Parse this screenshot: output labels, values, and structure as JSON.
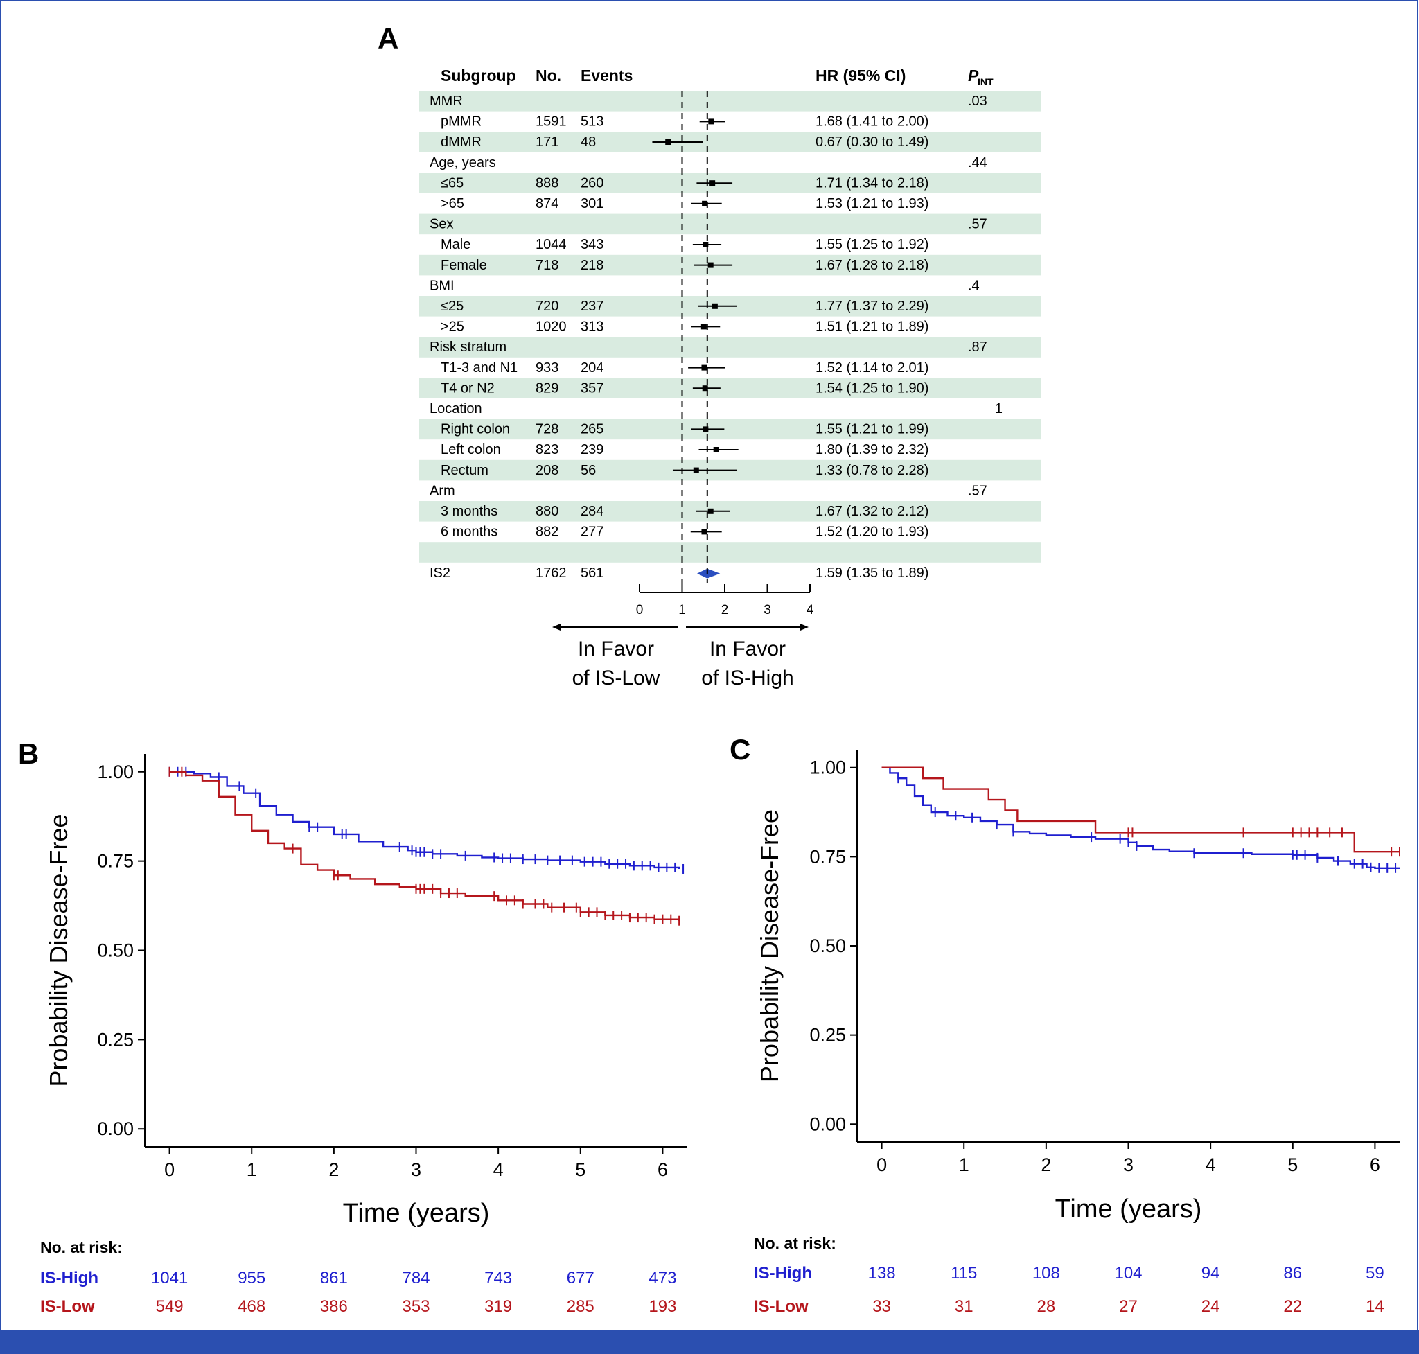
{
  "colors": {
    "high": "#1f1fcf",
    "low": "#b5161c",
    "band": "#d9ebe0",
    "diamond": "#2b4fc0",
    "footer": "#2b4fb0"
  },
  "forest": {
    "panel_label": "A",
    "headers": {
      "subgroup": "Subgroup",
      "no": "No.",
      "events": "Events",
      "hr": "HR (95% CI)",
      "pint": "P",
      "pint_sub": "INT"
    },
    "rows": [
      {
        "label": "MMR",
        "indent": false,
        "pint": ".03",
        "shaded": true
      },
      {
        "label": "pMMR",
        "indent": true,
        "no": "1591",
        "events": "513",
        "hr": 1.68,
        "lo": 1.41,
        "hi": 2.0,
        "ci": "1.68 (1.41 to 2.00)",
        "shaded": false
      },
      {
        "label": "dMMR",
        "indent": true,
        "no": "171",
        "events": "48",
        "hr": 0.67,
        "lo": 0.3,
        "hi": 1.49,
        "ci": "0.67 (0.30 to 1.49)",
        "shaded": true
      },
      {
        "label": "Age, years",
        "indent": false,
        "pint": ".44",
        "shaded": false
      },
      {
        "label": "≤65",
        "indent": true,
        "no": "888",
        "events": "260",
        "hr": 1.71,
        "lo": 1.34,
        "hi": 2.18,
        "ci": "1.71 (1.34 to 2.18)",
        "shaded": true
      },
      {
        "label": ">65",
        "indent": true,
        "no": "874",
        "events": "301",
        "hr": 1.53,
        "lo": 1.21,
        "hi": 1.93,
        "ci": "1.53 (1.21 to 1.93)",
        "shaded": false
      },
      {
        "label": "Sex",
        "indent": false,
        "pint": ".57",
        "shaded": true
      },
      {
        "label": "Male",
        "indent": true,
        "no": "1044",
        "events": "343",
        "hr": 1.55,
        "lo": 1.25,
        "hi": 1.92,
        "ci": "1.55 (1.25 to 1.92)",
        "shaded": false
      },
      {
        "label": "Female",
        "indent": true,
        "no": "718",
        "events": "218",
        "hr": 1.67,
        "lo": 1.28,
        "hi": 2.18,
        "ci": "1.67 (1.28 to 2.18)",
        "shaded": true
      },
      {
        "label": "BMI",
        "indent": false,
        "pint": ".4",
        "shaded": false
      },
      {
        "label": "≤25",
        "indent": true,
        "no": "720",
        "events": "237",
        "hr": 1.77,
        "lo": 1.37,
        "hi": 2.29,
        "ci": "1.77 (1.37 to 2.29)",
        "shaded": true
      },
      {
        "label": ">25",
        "indent": true,
        "no": "1020",
        "events": "313",
        "hr": 1.51,
        "lo": 1.21,
        "hi": 1.89,
        "ci": "1.51 (1.21 to 1.89)",
        "shaded": false
      },
      {
        "label": "Risk stratum",
        "indent": false,
        "pint": ".87",
        "shaded": true
      },
      {
        "label": "T1-3 and N1",
        "indent": true,
        "no": "933",
        "events": "204",
        "hr": 1.52,
        "lo": 1.14,
        "hi": 2.01,
        "ci": "1.52 (1.14 to 2.01)",
        "shaded": false
      },
      {
        "label": "T4 or N2",
        "indent": true,
        "no": "829",
        "events": "357",
        "hr": 1.54,
        "lo": 1.25,
        "hi": 1.9,
        "ci": "1.54 (1.25 to 1.90)",
        "shaded": true
      },
      {
        "label": "Location",
        "indent": false,
        "pint": "1",
        "shaded": false
      },
      {
        "label": "Right colon",
        "indent": true,
        "no": "728",
        "events": "265",
        "hr": 1.55,
        "lo": 1.21,
        "hi": 1.99,
        "ci": "1.55 (1.21 to 1.99)",
        "shaded": true
      },
      {
        "label": "Left colon",
        "indent": true,
        "no": "823",
        "events": "239",
        "hr": 1.8,
        "lo": 1.39,
        "hi": 2.32,
        "ci": "1.80 (1.39 to 2.32)",
        "shaded": false
      },
      {
        "label": "Rectum",
        "indent": true,
        "no": "208",
        "events": "56",
        "hr": 1.33,
        "lo": 0.78,
        "hi": 2.28,
        "ci": "1.33 (0.78 to 2.28)",
        "shaded": true
      },
      {
        "label": "Arm",
        "indent": false,
        "pint": ".57",
        "shaded": false
      },
      {
        "label": "3 months",
        "indent": true,
        "no": "880",
        "events": "284",
        "hr": 1.67,
        "lo": 1.32,
        "hi": 2.12,
        "ci": "1.67 (1.32 to 2.12)",
        "shaded": true
      },
      {
        "label": "6 months",
        "indent": true,
        "no": "882",
        "events": "277",
        "hr": 1.52,
        "lo": 1.2,
        "hi": 1.93,
        "ci": "1.52 (1.20 to 1.93)",
        "shaded": false
      },
      {
        "label": "",
        "indent": false,
        "shaded": true
      }
    ],
    "overall": {
      "label": "IS2",
      "no": "1762",
      "events": "561",
      "hr": 1.59,
      "lo": 1.35,
      "hi": 1.89,
      "ci": "1.59 (1.35 to 1.89)"
    },
    "axis_ticks": [
      0,
      1,
      2,
      3,
      4
    ],
    "left_label_1": "In Favor",
    "left_label_2": "of IS-Low",
    "right_label_1": "In Favor",
    "right_label_2": "of IS-High"
  },
  "chart_data": [
    {
      "type": "line",
      "panel": "B",
      "xlabel": "Time (years)",
      "ylabel": "Probability Disease-Free",
      "xlim": [
        -0.3,
        6.3
      ],
      "ylim": [
        -0.05,
        1.05
      ],
      "xticks": [
        0,
        1,
        2,
        3,
        4,
        5,
        6
      ],
      "yticks": [
        "0.00",
        "0.25",
        "0.50",
        "0.75",
        "1.00"
      ],
      "series": [
        {
          "name": "IS-High",
          "color": "high",
          "x": [
            0,
            0.3,
            0.5,
            0.7,
            0.9,
            1.1,
            1.3,
            1.5,
            1.7,
            2.0,
            2.3,
            2.6,
            2.9,
            3.0,
            3.2,
            3.5,
            3.8,
            4.0,
            4.3,
            4.6,
            5.0,
            5.3,
            5.6,
            5.9,
            6.2
          ],
          "y": [
            1.0,
            0.995,
            0.985,
            0.96,
            0.94,
            0.905,
            0.88,
            0.86,
            0.845,
            0.825,
            0.805,
            0.79,
            0.78,
            0.775,
            0.77,
            0.765,
            0.76,
            0.758,
            0.755,
            0.752,
            0.748,
            0.742,
            0.737,
            0.732,
            0.728
          ],
          "censor": [
            0,
            0.1,
            0.2,
            0.6,
            0.85,
            1.05,
            1.7,
            1.8,
            2.1,
            2.15,
            2.8,
            2.95,
            3.0,
            3.05,
            3.1,
            3.2,
            3.3,
            3.6,
            3.95,
            4.05,
            4.15,
            4.3,
            4.45,
            4.6,
            4.75,
            4.9,
            5.05,
            5.15,
            5.25,
            5.35,
            5.45,
            5.55,
            5.65,
            5.75,
            5.85,
            5.95,
            6.05,
            6.15,
            6.25
          ]
        },
        {
          "name": "IS-Low",
          "color": "low",
          "x": [
            0,
            0.2,
            0.4,
            0.6,
            0.8,
            1.0,
            1.2,
            1.4,
            1.6,
            1.8,
            2.0,
            2.2,
            2.5,
            2.8,
            3.0,
            3.3,
            3.6,
            4.0,
            4.3,
            4.6,
            5.0,
            5.3,
            5.6,
            5.9,
            6.2
          ],
          "y": [
            1.0,
            0.99,
            0.975,
            0.93,
            0.88,
            0.835,
            0.8,
            0.785,
            0.74,
            0.725,
            0.71,
            0.7,
            0.685,
            0.678,
            0.672,
            0.66,
            0.652,
            0.64,
            0.63,
            0.62,
            0.607,
            0.598,
            0.592,
            0.587,
            0.583
          ],
          "censor": [
            0,
            0.15,
            1.5,
            2.0,
            2.05,
            3.0,
            3.05,
            3.1,
            3.2,
            3.3,
            3.4,
            3.5,
            3.95,
            4.1,
            4.2,
            4.3,
            4.45,
            4.55,
            4.65,
            4.8,
            4.95,
            5.0,
            5.1,
            5.2,
            5.3,
            5.4,
            5.5,
            5.6,
            5.7,
            5.8,
            5.9,
            6.0,
            6.1,
            6.2
          ]
        }
      ],
      "risk_table": {
        "title": "No. at risk:",
        "rows": [
          {
            "name": "IS-High",
            "color": "high",
            "values": [
              "1041",
              "955",
              "861",
              "784",
              "743",
              "677",
              "473"
            ]
          },
          {
            "name": "IS-Low",
            "color": "low",
            "values": [
              "549",
              "468",
              "386",
              "353",
              "319",
              "285",
              "193"
            ]
          }
        ]
      }
    },
    {
      "type": "line",
      "panel": "C",
      "xlabel": "Time (years)",
      "ylabel": "Probability Disease-Free",
      "xlim": [
        -0.3,
        6.3
      ],
      "ylim": [
        -0.05,
        1.05
      ],
      "xticks": [
        0,
        1,
        2,
        3,
        4,
        5,
        6
      ],
      "yticks": [
        "0.00",
        "0.25",
        "0.50",
        "0.75",
        "1.00"
      ],
      "series": [
        {
          "name": "IS-High",
          "color": "high",
          "x": [
            0,
            0.1,
            0.2,
            0.3,
            0.4,
            0.5,
            0.6,
            0.8,
            1.0,
            1.2,
            1.4,
            1.6,
            1.8,
            2.0,
            2.3,
            2.6,
            2.9,
            3.0,
            3.1,
            3.3,
            3.5,
            3.8,
            4.0,
            4.5,
            5.0,
            5.3,
            5.5,
            5.7,
            5.9,
            6.0,
            6.3
          ],
          "y": [
            1.0,
            0.985,
            0.97,
            0.95,
            0.92,
            0.895,
            0.875,
            0.865,
            0.86,
            0.85,
            0.84,
            0.82,
            0.815,
            0.81,
            0.805,
            0.8,
            0.8,
            0.79,
            0.78,
            0.77,
            0.765,
            0.76,
            0.76,
            0.757,
            0.755,
            0.747,
            0.738,
            0.73,
            0.72,
            0.718,
            0.718
          ],
          "censor": [
            0.2,
            0.65,
            0.9,
            1.1,
            1.4,
            1.6,
            2.55,
            2.9,
            3.0,
            3.1,
            3.8,
            4.4,
            5.0,
            5.05,
            5.15,
            5.3,
            5.55,
            5.75,
            5.85,
            5.95,
            6.05,
            6.15,
            6.25
          ]
        },
        {
          "name": "IS-Low",
          "color": "low",
          "x": [
            0,
            0.5,
            0.75,
            1.0,
            1.3,
            1.5,
            1.65,
            2.0,
            2.5,
            2.6,
            3.0,
            3.5,
            4.0,
            5.0,
            5.5,
            5.75,
            6.0,
            6.3
          ],
          "y": [
            1.0,
            0.97,
            0.94,
            0.94,
            0.91,
            0.88,
            0.85,
            0.85,
            0.85,
            0.818,
            0.818,
            0.818,
            0.818,
            0.818,
            0.818,
            0.764,
            0.764,
            0.764
          ],
          "censor": [
            3.0,
            3.05,
            4.4,
            5.0,
            5.1,
            5.2,
            5.3,
            5.45,
            5.6,
            6.2,
            6.3
          ]
        }
      ],
      "risk_table": {
        "title": "No. at risk:",
        "rows": [
          {
            "name": "IS-High",
            "color": "high",
            "values": [
              "138",
              "115",
              "108",
              "104",
              "94",
              "86",
              "59"
            ]
          },
          {
            "name": "IS-Low",
            "color": "low",
            "values": [
              "33",
              "31",
              "28",
              "27",
              "24",
              "22",
              "14"
            ]
          }
        ]
      }
    }
  ]
}
